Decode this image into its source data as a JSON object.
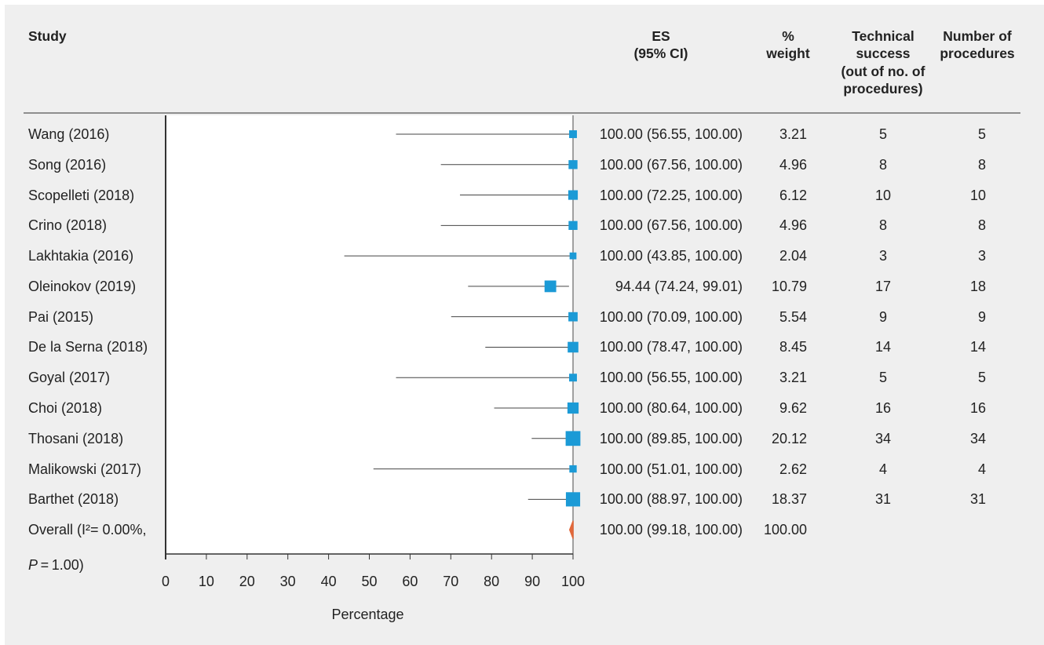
{
  "header": {
    "study": "Study",
    "es": {
      "line1": "ES",
      "line2": "(95% CI)"
    },
    "weight": {
      "line1": "%",
      "line2": "weight"
    },
    "technical_success": {
      "line1": "Technical",
      "line2": "success",
      "line3": "(out of no. of",
      "line4": "procedures)"
    },
    "procedures": {
      "line1": "Number of",
      "line2": "procedures"
    }
  },
  "chart_data": {
    "type": "scatter",
    "xlabel": "Percentage",
    "xlim": [
      0,
      100
    ],
    "xticks": [
      0,
      10,
      20,
      30,
      40,
      50,
      60,
      70,
      80,
      90,
      100
    ],
    "reference_line_x": 100,
    "grid": false,
    "legend": "none",
    "colors": {
      "marker": "#1b9ad6",
      "overall": "#e2683a",
      "ci_line": "#444444",
      "reference_line": "#8a8a8a",
      "axis": "#333333"
    },
    "studies": [
      {
        "name": "Wang (2016)",
        "es": 100.0,
        "ci_low": 56.55,
        "ci_high": 100.0,
        "weight": 3.21,
        "technical_success": 5,
        "procedures": 5
      },
      {
        "name": "Song (2016)",
        "es": 100.0,
        "ci_low": 67.56,
        "ci_high": 100.0,
        "weight": 4.96,
        "technical_success": 8,
        "procedures": 8
      },
      {
        "name": "Scopelleti (2018)",
        "es": 100.0,
        "ci_low": 72.25,
        "ci_high": 100.0,
        "weight": 6.12,
        "technical_success": 10,
        "procedures": 10
      },
      {
        "name": "Crino (2018)",
        "es": 100.0,
        "ci_low": 67.56,
        "ci_high": 100.0,
        "weight": 4.96,
        "technical_success": 8,
        "procedures": 8
      },
      {
        "name": "Lakhtakia (2016)",
        "es": 100.0,
        "ci_low": 43.85,
        "ci_high": 100.0,
        "weight": 2.04,
        "technical_success": 3,
        "procedures": 3
      },
      {
        "name": "Oleinokov (2019)",
        "es": 94.44,
        "ci_low": 74.24,
        "ci_high": 99.01,
        "weight": 10.79,
        "technical_success": 17,
        "procedures": 18
      },
      {
        "name": "Pai (2015)",
        "es": 100.0,
        "ci_low": 70.09,
        "ci_high": 100.0,
        "weight": 5.54,
        "technical_success": 9,
        "procedures": 9
      },
      {
        "name": "De la Serna (2018)",
        "es": 100.0,
        "ci_low": 78.47,
        "ci_high": 100.0,
        "weight": 8.45,
        "technical_success": 14,
        "procedures": 14
      },
      {
        "name": "Goyal (2017)",
        "es": 100.0,
        "ci_low": 56.55,
        "ci_high": 100.0,
        "weight": 3.21,
        "technical_success": 5,
        "procedures": 5
      },
      {
        "name": "Choi (2018)",
        "es": 100.0,
        "ci_low": 80.64,
        "ci_high": 100.0,
        "weight": 9.62,
        "technical_success": 16,
        "procedures": 16
      },
      {
        "name": "Thosani (2018)",
        "es": 100.0,
        "ci_low": 89.85,
        "ci_high": 100.0,
        "weight": 20.12,
        "technical_success": 34,
        "procedures": 34
      },
      {
        "name": "Malikowski (2017)",
        "es": 100.0,
        "ci_low": 51.01,
        "ci_high": 100.0,
        "weight": 2.62,
        "technical_success": 4,
        "procedures": 4
      },
      {
        "name": "Barthet (2018)",
        "es": 100.0,
        "ci_low": 88.97,
        "ci_high": 100.0,
        "weight": 18.37,
        "technical_success": 31,
        "procedures": 31
      }
    ],
    "overall": {
      "label": "Overall (I²= 0.00%,",
      "p_symbol": "P",
      "p_text": " = 1.00)",
      "es": 100.0,
      "ci_low": 99.18,
      "ci_high": 100.0,
      "weight": 100.0
    }
  }
}
